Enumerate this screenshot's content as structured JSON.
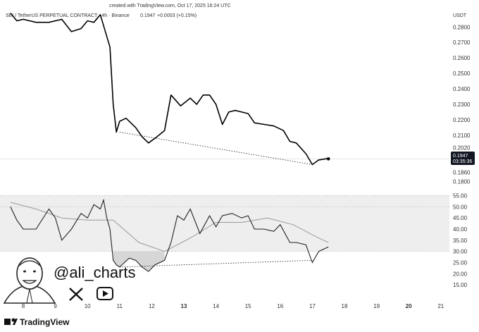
{
  "header": {
    "created_line": "created with TradingView.com, Oct 17, 2025 16:24 UTC",
    "symbol_line": "SEI / TetherUS PERPETUAL CONTRACT · 4h · Binance",
    "price": "0.1947",
    "change": "+0.0003 (+0.15%)",
    "currency": "USDT"
  },
  "price_badge": {
    "price": "0.1947",
    "countdown": "03:35:36"
  },
  "branding": {
    "handle": "@ali_charts",
    "logo_text": "TradingView",
    "icons": [
      "avatar-illustration",
      "x-logo-icon",
      "youtube-play-icon",
      "tradingview-logo-icon"
    ]
  },
  "colors": {
    "price_line": "#000000",
    "rsi_line": "#222222",
    "rsi_ma": "#9a9a9a",
    "rsi_band": "#eeeeee",
    "badge_bg": "#131722",
    "oversold_fill": "#cccccc"
  },
  "chart_data": [
    {
      "type": "line",
      "panel": "price",
      "ylim": [
        0.178,
        0.292
      ],
      "ticks": [
        {
          "value": 0.28,
          "label": "0.2800"
        },
        {
          "value": 0.27,
          "label": "0.2700"
        },
        {
          "value": 0.26,
          "label": "0.2600"
        },
        {
          "value": 0.25,
          "label": "0.2500"
        },
        {
          "value": 0.24,
          "label": "0.2400"
        },
        {
          "value": 0.23,
          "label": "0.2300"
        },
        {
          "value": 0.22,
          "label": "0.2200"
        },
        {
          "value": 0.21,
          "label": "0.2100"
        },
        {
          "value": 0.202,
          "label": "0.2020"
        },
        {
          "value": 0.186,
          "label": "0.1860"
        },
        {
          "value": 0.18,
          "label": "0.1800"
        }
      ],
      "x": [
        7.6,
        7.8,
        8.0,
        8.4,
        8.8,
        9.2,
        9.5,
        9.8,
        10.0,
        10.2,
        10.4,
        10.7,
        10.8,
        10.9,
        11.0,
        11.2,
        11.5,
        11.7,
        11.9,
        12.1,
        12.4,
        12.6,
        12.9,
        13.2,
        13.4,
        13.6,
        13.8,
        14.0,
        14.2,
        14.4,
        14.6,
        14.8,
        15.0,
        15.2,
        15.5,
        15.8,
        16.1,
        16.3,
        16.5,
        16.8,
        17.0,
        17.2,
        17.5
      ],
      "values": [
        0.289,
        0.284,
        0.285,
        0.283,
        0.283,
        0.285,
        0.277,
        0.279,
        0.284,
        0.283,
        0.288,
        0.267,
        0.23,
        0.212,
        0.219,
        0.221,
        0.215,
        0.209,
        0.205,
        0.208,
        0.213,
        0.236,
        0.229,
        0.234,
        0.23,
        0.236,
        0.236,
        0.23,
        0.217,
        0.225,
        0.226,
        0.225,
        0.224,
        0.218,
        0.217,
        0.216,
        0.213,
        0.206,
        0.205,
        0.198,
        0.191,
        0.194,
        0.195
      ],
      "trendline": {
        "x": [
          11.0,
          17.0
        ],
        "values": [
          0.212,
          0.191
        ]
      },
      "last_point": {
        "x": 17.5,
        "value": 0.1947
      }
    },
    {
      "type": "line",
      "panel": "rsi",
      "ylim": [
        10,
        58
      ],
      "band": [
        30,
        55
      ],
      "ticks": [
        {
          "value": 55,
          "label": "55.00"
        },
        {
          "value": 50,
          "label": "50.00"
        },
        {
          "value": 45,
          "label": "45.00"
        },
        {
          "value": 40,
          "label": "40.00"
        },
        {
          "value": 35,
          "label": "35.00"
        },
        {
          "value": 30,
          "label": "30.00"
        },
        {
          "value": 25,
          "label": "25.00"
        },
        {
          "value": 20,
          "label": "20.00"
        },
        {
          "value": 15,
          "label": "15.00"
        }
      ],
      "series": [
        {
          "x": [
            7.6,
            7.8,
            8.0,
            8.4,
            8.8,
            9.0,
            9.2,
            9.5,
            9.8,
            10.0,
            10.2,
            10.4,
            10.5,
            10.6,
            10.7,
            10.8,
            10.9,
            11.0,
            11.3,
            11.5,
            11.7,
            11.9,
            12.1,
            12.4,
            12.6,
            12.8,
            13.0,
            13.2,
            13.5,
            13.8,
            14.0,
            14.2,
            14.5,
            14.8,
            15.0,
            15.2,
            15.5,
            15.8,
            16.0,
            16.3,
            16.5,
            16.8,
            17.0,
            17.2,
            17.5
          ],
          "values": [
            50,
            44,
            40,
            40,
            49,
            45,
            35,
            40,
            47,
            45,
            51,
            49,
            53,
            45,
            40,
            26,
            24,
            23,
            27,
            26,
            23,
            21,
            24,
            26,
            34,
            46,
            44,
            49,
            38,
            46,
            41,
            46,
            47,
            45,
            46,
            40,
            40,
            39,
            42,
            34,
            34,
            33,
            25,
            30,
            32
          ]
        },
        {
          "x": [
            7.6,
            8.4,
            9.2,
            10.0,
            10.8,
            11.6,
            12.4,
            13.2,
            14.0,
            14.8,
            15.6,
            16.4,
            17.2,
            17.5
          ],
          "values": [
            52,
            49,
            45,
            44,
            44,
            34,
            30,
            36,
            43,
            43,
            45,
            42,
            36,
            34
          ]
        }
      ],
      "trendline": {
        "x": [
          11.0,
          17.0
        ],
        "values": [
          23,
          26
        ]
      }
    }
  ],
  "x_axis": {
    "ticks": [
      {
        "x": 8,
        "label": "8"
      },
      {
        "x": 9,
        "label": "9"
      },
      {
        "x": 10,
        "label": "10"
      },
      {
        "x": 11,
        "label": "11"
      },
      {
        "x": 12,
        "label": "12"
      },
      {
        "x": 13,
        "label": "13",
        "bold": true
      },
      {
        "x": 14,
        "label": "14"
      },
      {
        "x": 15,
        "label": "15"
      },
      {
        "x": 16,
        "label": "16"
      },
      {
        "x": 17,
        "label": "17"
      },
      {
        "x": 18,
        "label": "18"
      },
      {
        "x": 19,
        "label": "19"
      },
      {
        "x": 20,
        "label": "20",
        "bold": true
      },
      {
        "x": 21,
        "label": "21"
      }
    ]
  }
}
